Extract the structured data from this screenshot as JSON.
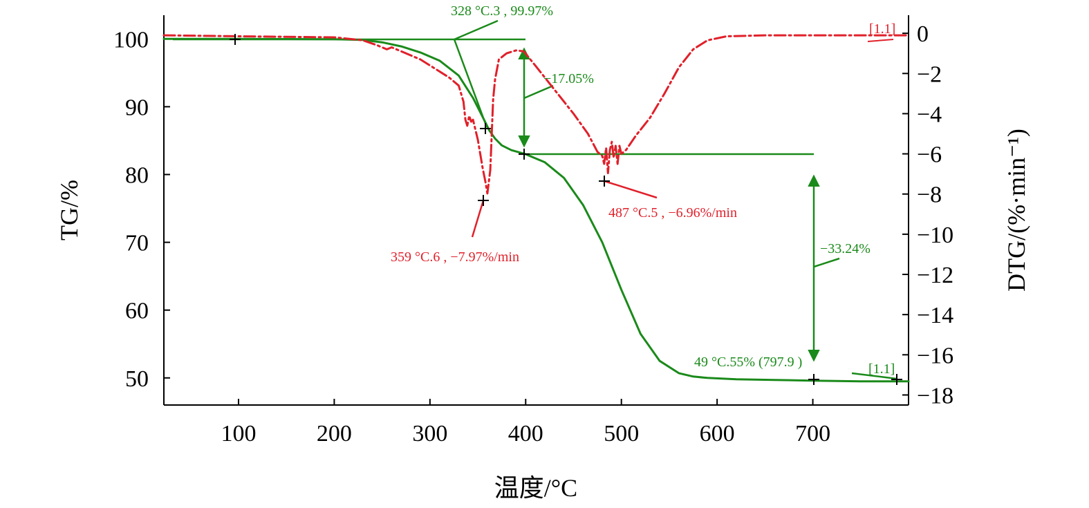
{
  "chart_data": {
    "type": "line",
    "xlabel": "温度/°C",
    "y1label": "TG/%",
    "y2label": "DTG/(%·min⁻¹)",
    "xlim": [
      22,
      800
    ],
    "y1lim": [
      46,
      103.5
    ],
    "y2lim": [
      -18.5,
      0.9
    ],
    "x_ticks": [
      100,
      200,
      300,
      400,
      500,
      600,
      700
    ],
    "y1_ticks": [
      50,
      60,
      70,
      80,
      90,
      100
    ],
    "y2_ticks": [
      0,
      -2,
      -4,
      -6,
      -8,
      -10,
      -12,
      -14,
      -16,
      -18
    ],
    "y2_tick_labels": [
      "0",
      "−2",
      "−4",
      "−6",
      "−8",
      "−10",
      "−12",
      "−14",
      "−16",
      "−18"
    ],
    "colors": {
      "tg": "#1a8a1a",
      "dtg": "#e0202a"
    },
    "series": [
      {
        "axis": "left",
        "style": "solid",
        "color": "#1a8a1a",
        "x": [
          22,
          100,
          200,
          230,
          250,
          270,
          290,
          310,
          330,
          345,
          355,
          362,
          368,
          375,
          385,
          400,
          420,
          440,
          460,
          480,
          500,
          520,
          540,
          560,
          575,
          590,
          620,
          660,
          700,
          750,
          800
        ],
        "y": [
          100,
          100,
          99.95,
          99.85,
          99.5,
          98.9,
          98,
          96.8,
          94.6,
          91.3,
          88.5,
          86.5,
          85.3,
          84.3,
          83.6,
          83.0,
          81.8,
          79.5,
          75.5,
          70,
          63,
          56.5,
          52.5,
          50.7,
          50.2,
          50.0,
          49.8,
          49.7,
          49.6,
          49.5,
          49.5
        ]
      },
      {
        "axis": "right",
        "style": "dashdot",
        "color": "#e0202a",
        "x": [
          22,
          100,
          200,
          230,
          245,
          255,
          260,
          270,
          290,
          310,
          320,
          330,
          335,
          337,
          339,
          341,
          343,
          345,
          350,
          355,
          358,
          360,
          363,
          366,
          368,
          372,
          380,
          390,
          398,
          410,
          430,
          450,
          465,
          475,
          480,
          482,
          484,
          486,
          488,
          490,
          492,
          494,
          496,
          498,
          500,
          505,
          515,
          530,
          545,
          560,
          575,
          590,
          610,
          650,
          700,
          750,
          800
        ],
        "y": [
          -0.1,
          -0.15,
          -0.2,
          -0.35,
          -0.6,
          -0.8,
          -0.7,
          -0.9,
          -1.3,
          -1.9,
          -2.2,
          -2.6,
          -3.4,
          -4.3,
          -4.6,
          -4.1,
          -4.4,
          -4.3,
          -5.3,
          -6.7,
          -7.4,
          -7.97,
          -6.8,
          -3.3,
          -2.3,
          -1.3,
          -1.0,
          -0.85,
          -0.9,
          -1.6,
          -2.8,
          -4.0,
          -5.0,
          -5.9,
          -6.1,
          -6.5,
          -5.7,
          -6.96,
          -5.8,
          -5.4,
          -6.2,
          -5.6,
          -6.5,
          -5.6,
          -6.0,
          -5.8,
          -5.1,
          -4.2,
          -3.0,
          -1.7,
          -0.8,
          -0.35,
          -0.15,
          -0.1,
          -0.1,
          -0.1,
          -0.1
        ]
      }
    ],
    "annotations": {
      "onset": "328 °C.3 , 99.97%",
      "loss1": "−17.05%",
      "loss2": "−33.24%",
      "peak1": "359 °C.6 , −7.97%/min",
      "peak2": "487 °C.5 , −6.96%/min",
      "residue": "49 °C.55% (797.9 )",
      "tag_red": "[1.1]",
      "tag_green": "[1.1]"
    }
  }
}
